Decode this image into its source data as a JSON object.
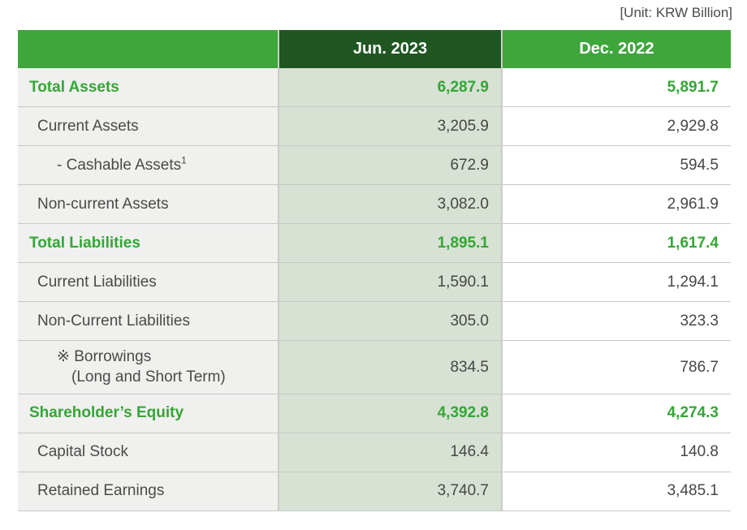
{
  "unit_label": "[Unit: KRW Billion]",
  "colors": {
    "header_green": "#3fa63c",
    "header_dark_green": "#1f5621",
    "accent_text_green": "#34a635",
    "jun_column_bg": "#d7e1d4",
    "label_column_bg": "#f0f0ef",
    "body_text_gray": "#474747",
    "border_gray": "#c6c9c6"
  },
  "table": {
    "columns": [
      "",
      "Jun. 2023",
      "Dec. 2022"
    ],
    "rows": [
      {
        "style": "total",
        "label": "Total Assets",
        "jun_2023": "6,287.9",
        "dec_2022": "5,891.7"
      },
      {
        "style": "item",
        "label": "Current Assets",
        "jun_2023": "3,205.9",
        "dec_2022": "2,929.8"
      },
      {
        "style": "sub",
        "label": "- Cashable Assets",
        "label_sup": "1",
        "jun_2023": "672.9",
        "dec_2022": "594.5"
      },
      {
        "style": "item",
        "label": "Non-current Assets",
        "jun_2023": "3,082.0",
        "dec_2022": "2,961.9"
      },
      {
        "style": "total",
        "label": "Total Liabilities",
        "jun_2023": "1,895.1",
        "dec_2022": "1,617.4"
      },
      {
        "style": "item",
        "label": "Current Liabilities",
        "jun_2023": "1,590.1",
        "dec_2022": "1,294.1"
      },
      {
        "style": "item",
        "label": "Non-Current Liabilities",
        "jun_2023": "305.0",
        "dec_2022": "323.3"
      },
      {
        "style": "note",
        "label": "※ Borrowings",
        "label_line2": "(Long and Short Term)",
        "jun_2023": "834.5",
        "dec_2022": "786.7"
      },
      {
        "style": "total",
        "label": "Shareholder’s Equity",
        "jun_2023": "4,392.8",
        "dec_2022": "4,274.3"
      },
      {
        "style": "item",
        "label": "Capital Stock",
        "jun_2023": "146.4",
        "dec_2022": "140.8"
      },
      {
        "style": "item",
        "label": "Retained Earnings",
        "jun_2023": "3,740.7",
        "dec_2022": "3,485.1"
      }
    ]
  }
}
